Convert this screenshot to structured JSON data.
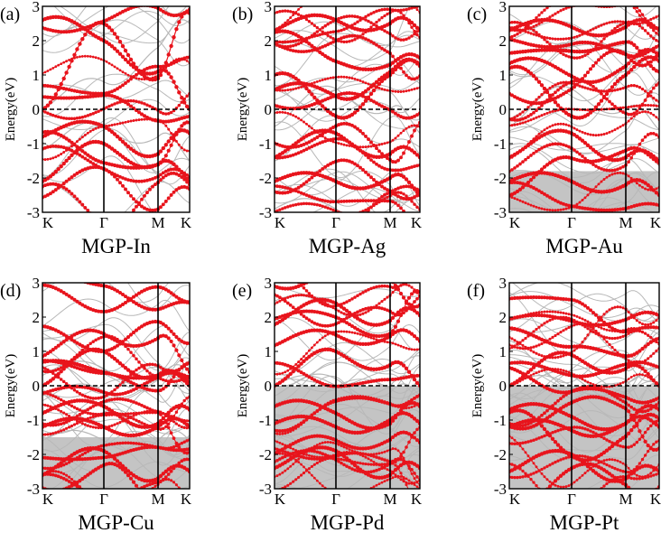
{
  "colors": {
    "projected": "#e8141c",
    "background_bands": "#b8b8b8",
    "fermi": "#000000",
    "frame": "#000000"
  },
  "chart_data": [
    {
      "type": "line",
      "panel": "(a)",
      "title": "MGP-In",
      "ylabel": "Energy(eV)",
      "ylim": [
        -3,
        3
      ],
      "yticks": [
        "3",
        "2",
        "1",
        "0",
        "-1",
        "-2",
        "-3"
      ],
      "kpath": [
        "K",
        "Γ",
        "M",
        "K"
      ],
      "fermi_level": 0,
      "series": [
        {
          "name": "projected",
          "values_at_kpoints": [
            [
              -0.8,
              -0.5,
              -1.3,
              -0.7
            ],
            [
              -2.1,
              -1.0,
              -1.6,
              -2.1
            ],
            [
              2.6,
              2.0,
              1.1,
              0.0
            ],
            [
              0.0,
              2.5,
              0.9,
              2.8
            ]
          ]
        },
        {
          "name": "background",
          "values_at_kpoints": [
            [
              0.0,
              0.8,
              1.8,
              2.5
            ],
            [
              -1.2,
              -0.5,
              -0.8,
              -1.5
            ]
          ]
        }
      ]
    },
    {
      "type": "line",
      "panel": "(b)",
      "title": "MGP-Ag",
      "ylabel": "Energy(eV)",
      "ylim": [
        -3,
        3
      ],
      "yticks": [
        "3",
        "2",
        "1",
        "0",
        "-1",
        "-2",
        "-3"
      ],
      "kpath": [
        "K",
        "Γ",
        "M",
        "K"
      ],
      "fermi_level": 0,
      "series": [
        {
          "name": "projected",
          "values_at_kpoints": [
            [
              1.0,
              -0.2,
              1.0,
              1.3
            ],
            [
              -1.4,
              -0.7,
              -1.3,
              -1.4
            ],
            [
              -2.1,
              -2.1,
              -2.0,
              -2.5
            ],
            [
              2.3,
              2.6,
              2.5,
              2.3
            ]
          ]
        },
        {
          "name": "background",
          "values_at_kpoints": [
            [
              -0.5,
              0.6,
              0.0,
              -0.7
            ],
            [
              -2.9,
              -2.9,
              -2.9,
              -2.9
            ]
          ]
        }
      ]
    },
    {
      "type": "line",
      "panel": "(c)",
      "title": "MGP-Au",
      "ylabel": "Energy(eV)",
      "ylim": [
        -3,
        3
      ],
      "yticks": [
        "3",
        "2",
        "1",
        "0",
        "-1",
        "-2",
        "-3"
      ],
      "kpath": [
        "K",
        "Γ",
        "M",
        "K"
      ],
      "fermi_level": 0,
      "series": [
        {
          "name": "projected",
          "values_at_kpoints": [
            [
              1.2,
              -0.2,
              1.0,
              1.4
            ],
            [
              -1.4,
              -0.7,
              -1.4,
              -1.5
            ],
            [
              -2.1,
              -2.1,
              -2.2,
              -2.5
            ],
            [
              2.3,
              2.4,
              2.4,
              2.3
            ]
          ]
        },
        {
          "name": "background",
          "values_at_kpoints": [
            [
              -0.5,
              0.6,
              0.0,
              -0.6
            ],
            [
              -2.0,
              -2.3,
              -2.0,
              -2.4
            ]
          ]
        }
      ]
    },
    {
      "type": "line",
      "panel": "(d)",
      "title": "MGP-Cu",
      "ylabel": "Energy(eV)",
      "ylim": [
        -3,
        3
      ],
      "yticks": [
        "3",
        "2",
        "1",
        "0",
        "-1",
        "-2",
        "-3"
      ],
      "kpath": [
        "K",
        "Γ",
        "M",
        "K"
      ],
      "fermi_level": 0,
      "series": [
        {
          "name": "projected",
          "values_at_kpoints": [
            [
              0.0,
              1.0,
              0.3,
              0.0
            ],
            [
              -0.8,
              -0.6,
              -1.1,
              -0.7
            ],
            [
              -1.2,
              -1.2,
              -1.2,
              -1.2
            ],
            [
              -2.6,
              -1.9,
              -2.7,
              -2.5
            ]
          ]
        },
        {
          "name": "background",
          "values_at_kpoints": [
            [
              -1.6,
              -1.6,
              -1.6,
              -1.6
            ],
            [
              0.3,
              0.5,
              0.2,
              0.4
            ]
          ]
        }
      ]
    },
    {
      "type": "line",
      "panel": "(e)",
      "title": "MGP-Pd",
      "ylabel": "Energy(eV)",
      "ylim": [
        -3,
        3
      ],
      "yticks": [
        "3",
        "2",
        "1",
        "0",
        "-1",
        "-2",
        "-3"
      ],
      "kpath": [
        "K",
        "Γ",
        "M",
        "K"
      ],
      "fermi_level": 0,
      "series": [
        {
          "name": "projected",
          "values_at_kpoints": [
            [
              0.0,
              1.0,
              0.6,
              0.0
            ],
            [
              -0.6,
              -0.8,
              -1.1,
              -0.6
            ],
            [
              -1.1,
              -1.2,
              -1.0,
              -1.1
            ],
            [
              -2.4,
              -1.9,
              -2.6,
              -2.4
            ]
          ]
        },
        {
          "name": "background",
          "values_at_kpoints": [
            [
              0.0,
              0.0,
              0.0,
              0.0
            ],
            [
              -0.3,
              0.2,
              -0.2,
              -0.3
            ]
          ]
        }
      ]
    },
    {
      "type": "line",
      "panel": "(f)",
      "title": "MGP-Pt",
      "ylabel": "Energy(eV)",
      "ylim": [
        -3,
        3
      ],
      "yticks": [
        "3",
        "2",
        "1",
        "0",
        "-1",
        "-2",
        "-3"
      ],
      "kpath": [
        "K",
        "Γ",
        "M",
        "K"
      ],
      "fermi_level": 0,
      "series": [
        {
          "name": "projected",
          "values_at_kpoints": [
            [
              0.0,
              0.9,
              0.5,
              0.0
            ],
            [
              -0.7,
              -0.9,
              -1.1,
              -0.7
            ],
            [
              -1.2,
              -1.3,
              -1.1,
              -1.2
            ],
            [
              -2.5,
              -2.0,
              -2.7,
              -2.5
            ]
          ]
        },
        {
          "name": "background",
          "values_at_kpoints": [
            [
              0.0,
              0.0,
              0.0,
              0.0
            ],
            [
              -0.4,
              0.3,
              -0.2,
              -0.4
            ]
          ]
        }
      ]
    }
  ]
}
